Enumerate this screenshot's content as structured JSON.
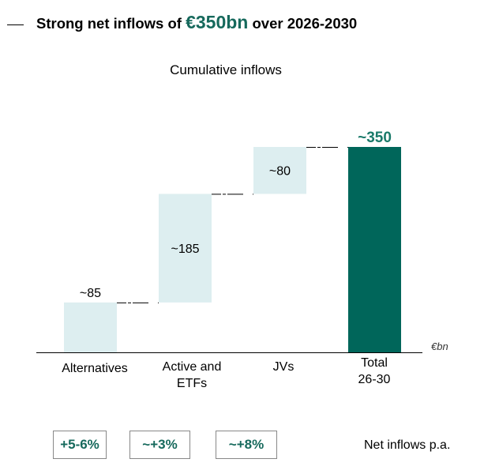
{
  "headline": {
    "prefix": "Strong net inflows of ",
    "highlight": "€350bn",
    "suffix": " over 2026-2030"
  },
  "chart_data": {
    "type": "waterfall",
    "title": "Cumulative inflows",
    "unit": "€bn",
    "categories": [
      "Alternatives",
      "Active and ETFs",
      "JVs",
      "Total 26-30"
    ],
    "category_lines": [
      [
        "Alternatives"
      ],
      [
        "Active and",
        "ETFs"
      ],
      [
        "JVs"
      ],
      [
        "Total",
        "26-30"
      ]
    ],
    "values": [
      85,
      185,
      80,
      350
    ],
    "data_labels": [
      "~85",
      "~185",
      "~80",
      "~350"
    ],
    "is_total": [
      false,
      false,
      false,
      true
    ],
    "colors": {
      "increment": "#ddeef0",
      "total": "#00665a",
      "total_label": "#1a7a6a"
    }
  },
  "growth": {
    "values": [
      "+5-6%",
      "~+3%",
      "~+8%"
    ],
    "label": "Net inflows p.a."
  }
}
